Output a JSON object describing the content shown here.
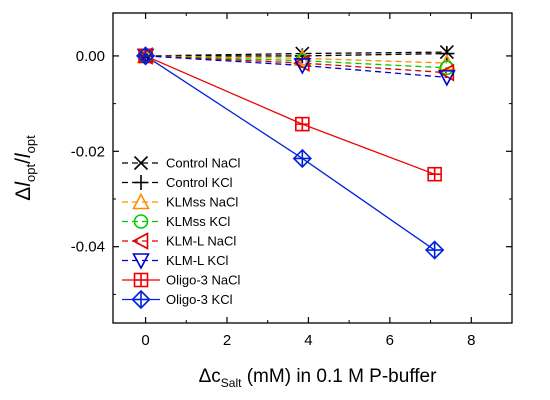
{
  "chart_data": {
    "type": "line",
    "xlabel": {
      "main": "Δc",
      "sub": "Salt",
      "rest": " (mM) in 0.1 M P-buffer"
    },
    "ylabel": {
      "delta": "Δ",
      "l1": "l",
      "s1": "opt",
      "slash": "/",
      "l2": "l",
      "s2": "opt"
    },
    "xlim": [
      -0.8,
      9.0
    ],
    "ylim": [
      -0.056,
      0.009
    ],
    "xticks": [
      0,
      2,
      4,
      6,
      8
    ],
    "xtick_labels": [
      "0",
      "2",
      "4",
      "6",
      "8"
    ],
    "yticks": [
      0.0,
      -0.02,
      -0.04
    ],
    "ytick_labels": [
      "0.00",
      "-0.02",
      "-0.04"
    ],
    "grid": false,
    "legend_position": "lower-left",
    "series": [
      {
        "name": "Control NaCl",
        "color": "#000000",
        "marker": "x",
        "dash": "6,4",
        "x": [
          0,
          3.85,
          7.4
        ],
        "y": [
          0.0,
          0.0005,
          0.0008
        ]
      },
      {
        "name": "Control KCl",
        "color": "#000000",
        "marker": "plus",
        "dash": "6,4",
        "x": [
          0,
          3.85,
          7.4
        ],
        "y": [
          0.0,
          0.0,
          0.0005
        ]
      },
      {
        "name": "KLMss NaCl",
        "color": "#ff8c00",
        "marker": "triangle-up",
        "dash": "6,4",
        "x": [
          0,
          3.85,
          7.4
        ],
        "y": [
          0.0,
          -0.0005,
          -0.0015
        ]
      },
      {
        "name": "KLMss KCl",
        "color": "#00cc00",
        "marker": "circle",
        "dash": "6,4",
        "x": [
          0,
          3.85,
          7.4
        ],
        "y": [
          0.0,
          -0.001,
          -0.0025
        ]
      },
      {
        "name": "KLM-L NaCl",
        "color": "#dd0000",
        "marker": "triangle-left",
        "dash": "6,4",
        "x": [
          0,
          3.85,
          7.4
        ],
        "y": [
          0.0,
          -0.0015,
          -0.0035
        ]
      },
      {
        "name": "KLM-L KCl",
        "color": "#0000cc",
        "marker": "triangle-down",
        "dash": "6,4",
        "x": [
          0,
          3.85,
          7.4
        ],
        "y": [
          0.0,
          -0.002,
          -0.0045
        ]
      },
      {
        "name": "Oligo-3 NaCl",
        "color": "#ee0000",
        "marker": "square-plus",
        "dash": "",
        "x": [
          0,
          3.85,
          7.1
        ],
        "y": [
          0.0,
          -0.0143,
          -0.0248
        ]
      },
      {
        "name": "Oligo-3 KCl",
        "color": "#0022dd",
        "marker": "diamond-plus",
        "dash": "",
        "x": [
          0,
          3.85,
          7.1
        ],
        "y": [
          0.0,
          -0.0215,
          -0.0407
        ]
      }
    ]
  }
}
